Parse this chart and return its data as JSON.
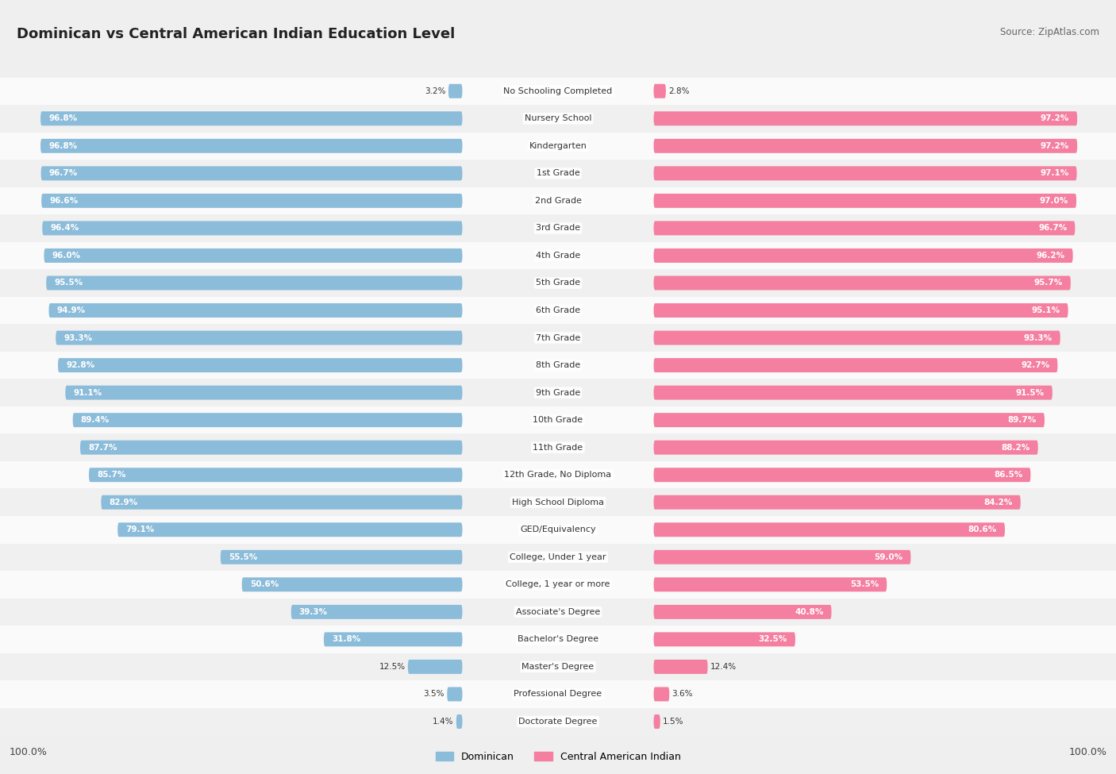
{
  "title": "Dominican vs Central American Indian Education Level",
  "source": "Source: ZipAtlas.com",
  "categories": [
    "No Schooling Completed",
    "Nursery School",
    "Kindergarten",
    "1st Grade",
    "2nd Grade",
    "3rd Grade",
    "4th Grade",
    "5th Grade",
    "6th Grade",
    "7th Grade",
    "8th Grade",
    "9th Grade",
    "10th Grade",
    "11th Grade",
    "12th Grade, No Diploma",
    "High School Diploma",
    "GED/Equivalency",
    "College, Under 1 year",
    "College, 1 year or more",
    "Associate's Degree",
    "Bachelor's Degree",
    "Master's Degree",
    "Professional Degree",
    "Doctorate Degree"
  ],
  "dominican": [
    3.2,
    96.8,
    96.8,
    96.7,
    96.6,
    96.4,
    96.0,
    95.5,
    94.9,
    93.3,
    92.8,
    91.1,
    89.4,
    87.7,
    85.7,
    82.9,
    79.1,
    55.5,
    50.6,
    39.3,
    31.8,
    12.5,
    3.5,
    1.4
  ],
  "central_american_indian": [
    2.8,
    97.2,
    97.2,
    97.1,
    97.0,
    96.7,
    96.2,
    95.7,
    95.1,
    93.3,
    92.7,
    91.5,
    89.7,
    88.2,
    86.5,
    84.2,
    80.6,
    59.0,
    53.5,
    40.8,
    32.5,
    12.4,
    3.6,
    1.5
  ],
  "dominican_color": "#8BBCDA",
  "central_american_color": "#F47FA0",
  "background_color": "#EFEFEF",
  "row_colors": [
    "#FAFAFA",
    "#F0F0F0"
  ],
  "axis_label_left": "100.0%",
  "axis_label_right": "100.0%",
  "legend_dominican": "Dominican",
  "legend_central": "Central American Indian",
  "title_fontsize": 13,
  "label_fontsize": 8,
  "value_fontsize": 7.5
}
